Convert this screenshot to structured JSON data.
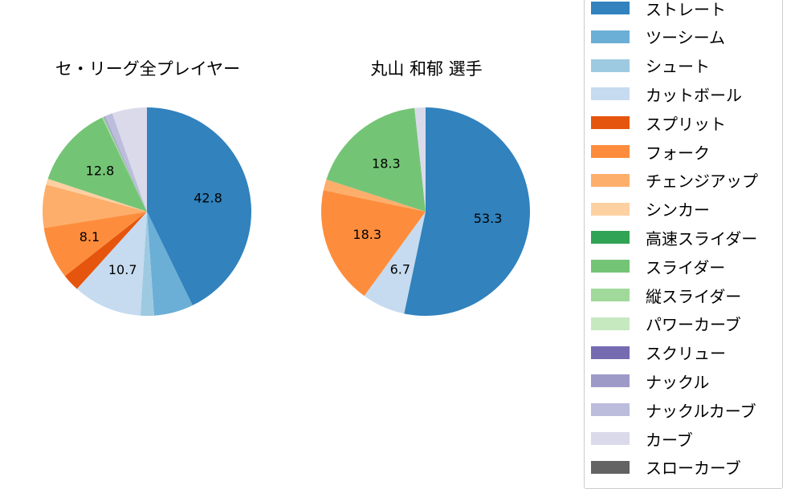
{
  "chart_data": [
    {
      "type": "pie",
      "title": "セ・リーグ全プレイヤー",
      "start_angle": "top, clockwise",
      "slices": [
        {
          "label": "ストレート",
          "value": 42.8,
          "color": "#3182bd",
          "shown": "42.8"
        },
        {
          "label": "ツーシーム",
          "value": 6.1,
          "color": "#6baed6",
          "shown": ""
        },
        {
          "label": "シュート",
          "value": 2.1,
          "color": "#9ecae1",
          "shown": ""
        },
        {
          "label": "カットボール",
          "value": 10.7,
          "color": "#c6dbef",
          "shown": "10.7"
        },
        {
          "label": "スプリット",
          "value": 2.7,
          "color": "#e6550d",
          "shown": ""
        },
        {
          "label": "フォーク",
          "value": 8.1,
          "color": "#fd8d3c",
          "shown": "8.1"
        },
        {
          "label": "チェンジアップ",
          "value": 6.7,
          "color": "#fdae6b",
          "shown": ""
        },
        {
          "label": "シンカー",
          "value": 0.9,
          "color": "#fdd0a2",
          "shown": ""
        },
        {
          "label": "スライダー",
          "value": 12.8,
          "color": "#74c476",
          "shown": "12.8"
        },
        {
          "label": "縦スライダー",
          "value": 0.3,
          "color": "#a1d99b",
          "shown": ""
        },
        {
          "label": "ナックル",
          "value": 0.2,
          "color": "#9e9ac8",
          "shown": ""
        },
        {
          "label": "ナックルカーブ",
          "value": 1.2,
          "color": "#bcbddc",
          "shown": ""
        },
        {
          "label": "カーブ",
          "value": 5.4,
          "color": "#dadaeb",
          "shown": ""
        }
      ]
    },
    {
      "type": "pie",
      "title": "丸山 和郁  選手",
      "start_angle": "top, clockwise",
      "slices": [
        {
          "label": "ストレート",
          "value": 53.3,
          "color": "#3182bd",
          "shown": "53.3"
        },
        {
          "label": "カットボール",
          "value": 6.7,
          "color": "#c6dbef",
          "shown": "6.7"
        },
        {
          "label": "フォーク",
          "value": 18.3,
          "color": "#fd8d3c",
          "shown": "18.3"
        },
        {
          "label": "チェンジアップ",
          "value": 1.7,
          "color": "#fdae6b",
          "shown": ""
        },
        {
          "label": "スライダー",
          "value": 18.3,
          "color": "#74c476",
          "shown": "18.3"
        },
        {
          "label": "カーブ",
          "value": 1.7,
          "color": "#dadaeb",
          "shown": ""
        }
      ]
    }
  ],
  "titles": {
    "left": "セ・リーグ全プレイヤー",
    "right": "丸山 和郁  選手"
  },
  "legend": [
    {
      "label": "ストレート",
      "color": "#3182bd"
    },
    {
      "label": "ツーシーム",
      "color": "#6baed6"
    },
    {
      "label": "シュート",
      "color": "#9ecae1"
    },
    {
      "label": "カットボール",
      "color": "#c6dbef"
    },
    {
      "label": "スプリット",
      "color": "#e6550d"
    },
    {
      "label": "フォーク",
      "color": "#fd8d3c"
    },
    {
      "label": "チェンジアップ",
      "color": "#fdae6b"
    },
    {
      "label": "シンカー",
      "color": "#fdd0a2"
    },
    {
      "label": "高速スライダー",
      "color": "#31a354"
    },
    {
      "label": "スライダー",
      "color": "#74c476"
    },
    {
      "label": "縦スライダー",
      "color": "#a1d99b"
    },
    {
      "label": "パワーカーブ",
      "color": "#c7e9c0"
    },
    {
      "label": "スクリュー",
      "color": "#756bb1"
    },
    {
      "label": "ナックル",
      "color": "#9e9ac8"
    },
    {
      "label": "ナックルカーブ",
      "color": "#bcbddc"
    },
    {
      "label": "カーブ",
      "color": "#dadaeb"
    },
    {
      "label": "スローカーブ",
      "color": "#636363"
    }
  ]
}
